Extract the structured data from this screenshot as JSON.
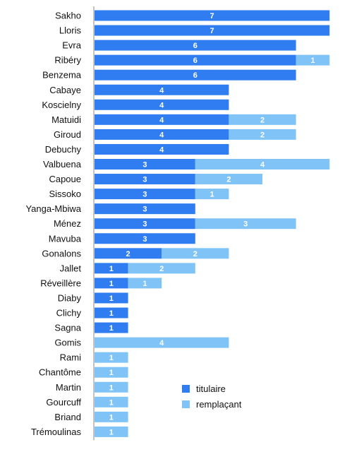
{
  "chart_data": {
    "type": "bar",
    "orientation": "horizontal",
    "stacked": true,
    "categories": [
      "Sakho",
      "Lloris",
      "Evra",
      "Ribéry",
      "Benzema",
      "Cabaye",
      "Koscielny",
      "Matuidi",
      "Giroud",
      "Debuchy",
      "Valbuena",
      "Capoue",
      "Sissoko",
      "Yanga-Mbiwa",
      "Ménez",
      "Mavuba",
      "Gonalons",
      "Jallet",
      "Réveillère",
      "Diaby",
      "Clichy",
      "Sagna",
      "Gomis",
      "Rami",
      "Chantôme",
      "Martin",
      "Gourcuff",
      "Briand",
      "Trémoulinas"
    ],
    "series": [
      {
        "name": "titulaire",
        "color": "#2f7df0",
        "values": [
          7,
          7,
          6,
          6,
          6,
          4,
          4,
          4,
          4,
          4,
          3,
          3,
          3,
          3,
          3,
          3,
          2,
          1,
          1,
          1,
          1,
          1,
          0,
          0,
          0,
          0,
          0,
          0,
          0
        ]
      },
      {
        "name": "remplaçant",
        "color": "#80c3f7",
        "values": [
          0,
          0,
          0,
          1,
          0,
          0,
          0,
          2,
          2,
          0,
          4,
          2,
          1,
          0,
          3,
          0,
          2,
          2,
          1,
          0,
          0,
          0,
          4,
          1,
          1,
          1,
          1,
          1,
          1
        ]
      }
    ],
    "xlim": [
      0,
      7
    ],
    "grid": false,
    "legend_position": "bottom-right",
    "data_labels": true
  }
}
